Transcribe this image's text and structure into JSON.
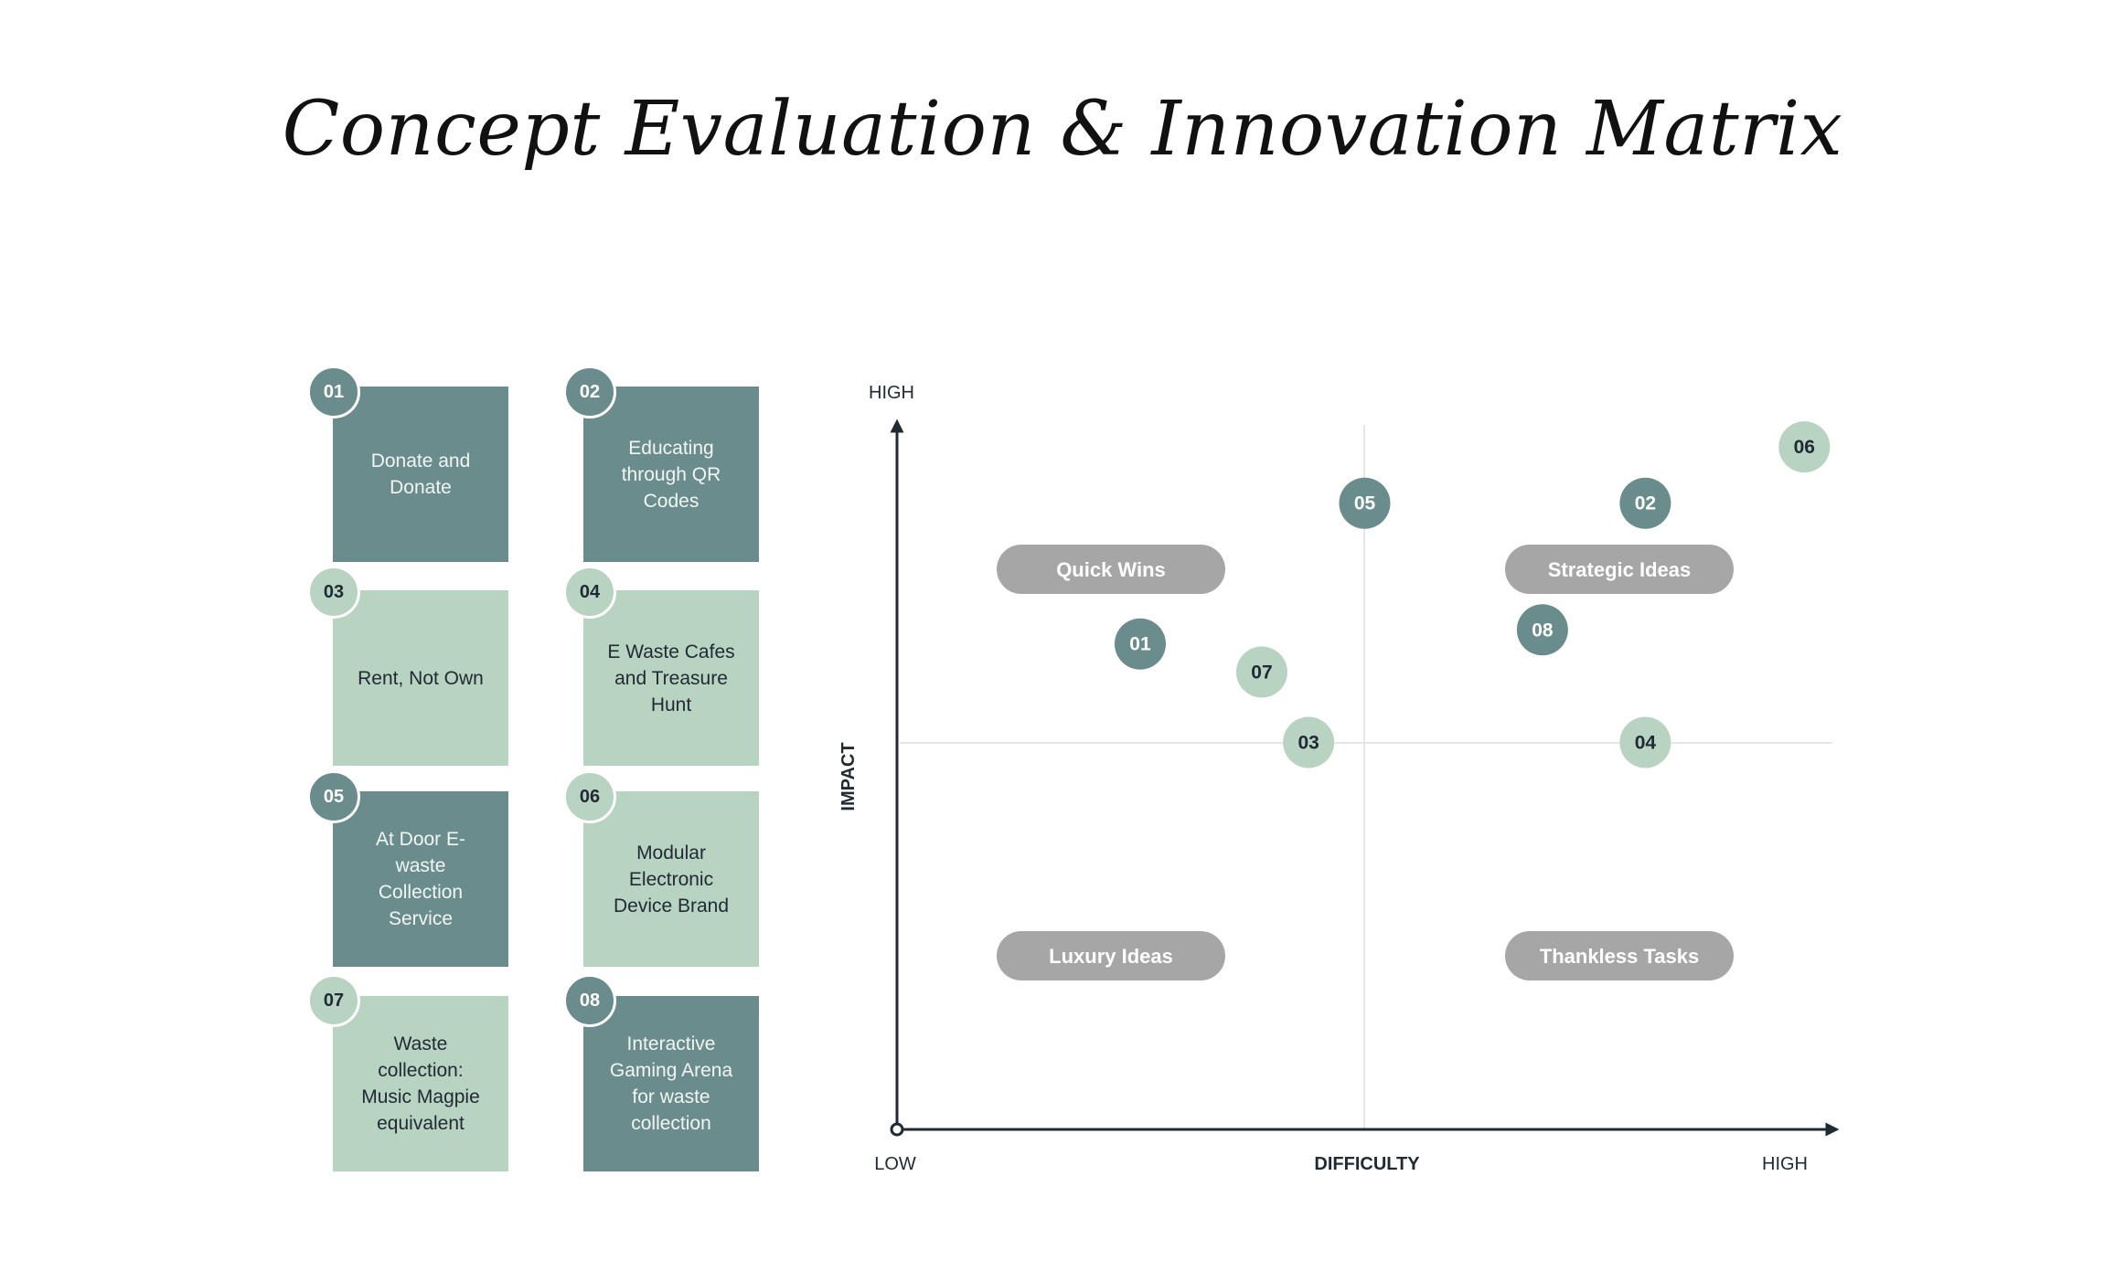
{
  "title": "Concept Evaluation & Innovation Matrix",
  "colors": {
    "dark": "#6a8c8c",
    "light": "#b8d3c2",
    "pill": "#a6a6a6",
    "axis": "#1f2a33"
  },
  "concepts": [
    {
      "num": "01",
      "label": "Donate and Donate",
      "tone": "dark"
    },
    {
      "num": "02",
      "label": "Educating through QR Codes",
      "tone": "dark"
    },
    {
      "num": "03",
      "label": "Rent, Not Own",
      "tone": "light"
    },
    {
      "num": "04",
      "label": "E Waste Cafes and Treasure Hunt",
      "tone": "light"
    },
    {
      "num": "05",
      "label": "At Door E-waste Collection Service",
      "tone": "dark"
    },
    {
      "num": "06",
      "label": "Modular Electronic Device Brand",
      "tone": "light"
    },
    {
      "num": "07",
      "label": "Waste collection: Music Magpie equivalent",
      "tone": "light"
    },
    {
      "num": "08",
      "label": "Interactive Gaming Arena for waste collection",
      "tone": "dark"
    }
  ],
  "matrix": {
    "y_high": "HIGH",
    "y_label": "IMPACT",
    "x_low": "LOW",
    "x_label": "DIFFICULTY",
    "x_high": "HIGH",
    "quadrants": [
      "Quick Wins",
      "Strategic Ideas",
      "Luxury Ideas",
      "Thankless Tasks"
    ]
  },
  "chart_data": {
    "type": "scatter",
    "xlabel": "DIFFICULTY",
    "ylabel": "IMPACT",
    "xlim": [
      0,
      1
    ],
    "ylim": [
      0,
      1
    ],
    "points": [
      {
        "label": "01",
        "x": 0.26,
        "y": 0.69,
        "tone": "dark"
      },
      {
        "label": "02",
        "x": 0.8,
        "y": 0.89,
        "tone": "dark"
      },
      {
        "label": "03",
        "x": 0.44,
        "y": 0.55,
        "tone": "light"
      },
      {
        "label": "04",
        "x": 0.8,
        "y": 0.55,
        "tone": "light"
      },
      {
        "label": "05",
        "x": 0.5,
        "y": 0.89,
        "tone": "dark"
      },
      {
        "label": "06",
        "x": 0.97,
        "y": 0.97,
        "tone": "light"
      },
      {
        "label": "07",
        "x": 0.39,
        "y": 0.65,
        "tone": "light"
      },
      {
        "label": "08",
        "x": 0.69,
        "y": 0.71,
        "tone": "dark"
      }
    ]
  }
}
